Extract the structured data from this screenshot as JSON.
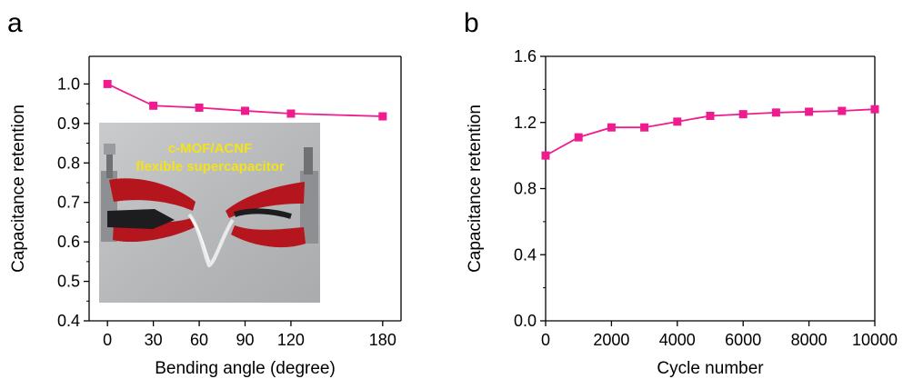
{
  "panels": [
    {
      "label": "a"
    },
    {
      "label": "b"
    }
  ],
  "colors": {
    "series": "#ee1c8f",
    "axis": "#000000",
    "background": "#ffffff"
  },
  "chart_data": [
    {
      "type": "line",
      "markers": "square",
      "x": [
        0,
        30,
        60,
        90,
        120,
        180
      ],
      "values": [
        1.0,
        0.945,
        0.94,
        0.932,
        0.925,
        0.918
      ],
      "xlabel": "Bending angle (degree)",
      "ylabel": "Capacitance retention",
      "xlim": [
        -12,
        192
      ],
      "ylim": [
        0.4,
        1.07
      ],
      "xticks": [
        0,
        30,
        60,
        90,
        120,
        180
      ],
      "xtick_labels": [
        "0",
        "30",
        "60",
        "90",
        "120",
        "180"
      ],
      "yticks": [
        0.4,
        0.5,
        0.6,
        0.7,
        0.8,
        0.9,
        1.0
      ],
      "ytick_labels": [
        "0.4",
        "0.5",
        "0.6",
        "0.7",
        "0.8",
        "0.9",
        "1.0"
      ],
      "grid": false,
      "inset_photo": {
        "caption_line1": "c-MOF/ACNF",
        "caption_line2": "flexible supercapacitor"
      }
    },
    {
      "type": "line",
      "markers": "square",
      "x": [
        0,
        1000,
        2000,
        3000,
        4000,
        5000,
        6000,
        7000,
        8000,
        9000,
        10000
      ],
      "values": [
        1.0,
        1.11,
        1.17,
        1.17,
        1.205,
        1.24,
        1.25,
        1.26,
        1.265,
        1.27,
        1.28
      ],
      "xlabel": "Cycle number",
      "ylabel": "Capacitance retention",
      "xlim": [
        0,
        10000
      ],
      "ylim": [
        0.0,
        1.6
      ],
      "xticks": [
        0,
        2000,
        4000,
        6000,
        8000,
        10000
      ],
      "xtick_labels": [
        "0",
        "2000",
        "4000",
        "6000",
        "8000",
        "10000"
      ],
      "yticks": [
        0.0,
        0.4,
        0.8,
        1.2,
        1.6
      ],
      "ytick_labels": [
        "0.0",
        "0.4",
        "0.8",
        "1.2",
        "1.6"
      ],
      "grid": false
    }
  ]
}
